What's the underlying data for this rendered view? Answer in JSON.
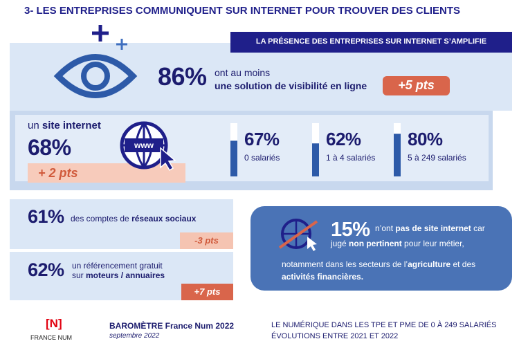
{
  "title": "3- LES ENTREPRISES COMMUNIQUENT SUR INTERNET POUR TROUVER DES CLIENTS",
  "banner": "LA PRÉSENCE DES ENTREPRISES SUR INTERNET S’AMPLIFIE",
  "visibility": {
    "value": "86%",
    "text": [
      "ont au moins",
      "une solution de visibilité en ligne"
    ],
    "change": "+5 pts"
  },
  "website": {
    "label": [
      "un",
      "site internet"
    ],
    "value": "68%",
    "change": "+ 2 pts",
    "icon_text": "www",
    "breakdown": [
      {
        "value": 67,
        "label": "67%",
        "group": "0 salariés"
      },
      {
        "value": 62,
        "label": "62%",
        "group": "1 à 4 salariés"
      },
      {
        "value": 80,
        "label": "80%",
        "group": "5 à 249 salariés"
      }
    ]
  },
  "social": {
    "value": "61%",
    "text": [
      "des comptes de",
      "réseaux sociaux"
    ],
    "change": "-3 pts"
  },
  "directories": {
    "value": "62%",
    "text": [
      "un référencement gratuit",
      "sur",
      "moteurs / annuaires"
    ],
    "change": "+7 pts"
  },
  "no_website": {
    "value": "15%",
    "lines": [
      [
        "n’ont ",
        "pas de site internet",
        " car"
      ],
      [
        "jugé ",
        "non pertinent",
        " pour leur métier,"
      ],
      [
        "notamment dans les secteurs de l’",
        "agriculture",
        " et des"
      ],
      [
        "activités financières."
      ]
    ]
  },
  "footer": {
    "logo": "[N]",
    "brand": "FRANCE NUM",
    "barometer": "BAROMÈTRE France Num 2022",
    "date": "septembre 2022",
    "subtitle": [
      "LE NUMÉRIQUE DANS LES TPE ET PME DE 0 À 249 SALARIÉS",
      "ÉVOLUTIONS ENTRE 2021 ET 2022"
    ]
  }
}
